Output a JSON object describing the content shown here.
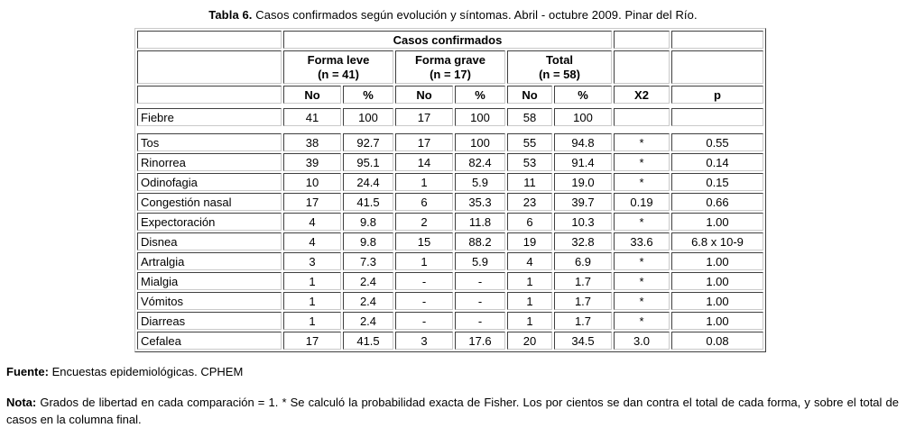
{
  "title": {
    "label": "Tabla 6.",
    "text": " Casos confirmados según evolución y síntomas. Abril - octubre 2009. Pinar del Río."
  },
  "table": {
    "top_header": "Casos confirmados",
    "groups": [
      {
        "line1": "Forma leve",
        "line2": "(n = 41)"
      },
      {
        "line1": "Forma grave",
        "line2": "(n = 17)"
      },
      {
        "line1": "Total",
        "line2": "(n = 58)"
      }
    ],
    "sub_headers": [
      "No",
      "%",
      "No",
      "%",
      "No",
      "%"
    ],
    "stat_headers": {
      "x2": "X2",
      "p": "p"
    },
    "rows": [
      {
        "symptom": "Fiebre",
        "values": [
          "41",
          "100",
          "17",
          "100",
          "58",
          "100",
          "",
          ""
        ]
      },
      {
        "symptom": "Tos",
        "values": [
          "38",
          "92.7",
          "17",
          "100",
          "55",
          "94.8",
          "*",
          "0.55"
        ]
      },
      {
        "symptom": "Rinorrea",
        "values": [
          "39",
          "95.1",
          "14",
          "82.4",
          "53",
          "91.4",
          "*",
          "0.14"
        ]
      },
      {
        "symptom": "Odinofagia",
        "values": [
          "10",
          "24.4",
          "1",
          "5.9",
          "11",
          "19.0",
          "*",
          "0.15"
        ]
      },
      {
        "symptom": "Congestión nasal",
        "values": [
          "17",
          "41.5",
          "6",
          "35.3",
          "23",
          "39.7",
          "0.19",
          "0.66"
        ]
      },
      {
        "symptom": "Expectoración",
        "values": [
          "4",
          "9.8",
          "2",
          "11.8",
          "6",
          "10.3",
          "*",
          "1.00"
        ]
      },
      {
        "symptom": "Disnea",
        "values": [
          "4",
          "9.8",
          "15",
          "88.2",
          "19",
          "32.8",
          "33.6",
          "6.8 x 10-9"
        ]
      },
      {
        "symptom": "Artralgia",
        "values": [
          "3",
          "7.3",
          "1",
          "5.9",
          "4",
          "6.9",
          "*",
          "1.00"
        ]
      },
      {
        "symptom": "Mialgia",
        "values": [
          "1",
          "2.4",
          "-",
          "-",
          "1",
          "1.7",
          "*",
          "1.00"
        ]
      },
      {
        "symptom": "Vómitos",
        "values": [
          "1",
          "2.4",
          "-",
          "-",
          "1",
          "1.7",
          "*",
          "1.00"
        ]
      },
      {
        "symptom": "Diarreas",
        "values": [
          "1",
          "2.4",
          "-",
          "-",
          "1",
          "1.7",
          "*",
          "1.00"
        ]
      },
      {
        "symptom": "Cefalea",
        "values": [
          "17",
          "41.5",
          "3",
          "17.6",
          "20",
          "34.5",
          "3.0",
          "0.08"
        ]
      }
    ]
  },
  "footer": {
    "fuente_label": "Fuente:",
    "fuente_text": " Encuestas epidemiológicas. CPHEM",
    "nota_label": "Nota:",
    "nota_text": " Grados de libertad en cada comparación = 1. * Se calculó la probabilidad exacta de Fisher. Los por cientos se dan contra el total de cada forma, y sobre el total de casos en la columna final."
  },
  "colors": {
    "border_dark": "#3f3f3f",
    "border_light": "#c9c9c9",
    "text": "#000000",
    "background": "#ffffff"
  }
}
